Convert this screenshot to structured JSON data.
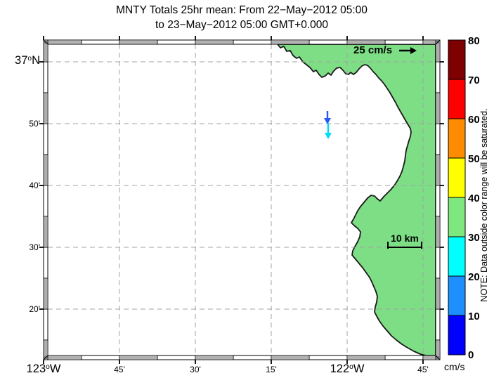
{
  "title": {
    "line1": "MNTY Totals 25hr mean: From 22−May−2012 05:00",
    "line2": "to 23−May−2012 05:00 GMT+0.000"
  },
  "map": {
    "land_color": "#7DDE85",
    "coast_color": "#1a1a1a",
    "grid_color": "#a3a3a3",
    "x_axis": {
      "ticks": [
        {
          "num": "123",
          "sup": "o",
          "dir": "W"
        },
        {
          "label": "45'"
        },
        {
          "label": "30'"
        },
        {
          "label": "15'"
        },
        {
          "num": "122",
          "sup": "o",
          "dir": "W"
        },
        {
          "label": "45'"
        }
      ]
    },
    "y_axis": {
      "ticks": [
        {
          "num": "37",
          "sup": "o",
          "dir": "N"
        },
        {
          "label": "50'"
        },
        {
          "label": "40'"
        },
        {
          "label": "30'"
        },
        {
          "label": "20'"
        }
      ]
    },
    "vector_scale": {
      "label": "25 cm/s",
      "color": "#000000"
    },
    "distance_scale": {
      "label": "10 km"
    },
    "current_vectors": [
      {
        "name": "vector-1",
        "color": "#2B59F0",
        "direction": "down"
      },
      {
        "name": "vector-2",
        "color": "#00D9FB",
        "direction": "down"
      }
    ]
  },
  "colorbar": {
    "unit": "cm/s",
    "note": "NOTE: Data outside color range will be saturated.",
    "tick_labels": [
      "80",
      "70",
      "60",
      "50",
      "40",
      "30",
      "20",
      "10",
      "0"
    ],
    "segments": [
      {
        "range": "70-80",
        "color": "#7E0000"
      },
      {
        "range": "60-70",
        "color": "#FF0000"
      },
      {
        "range": "50-60",
        "color": "#FF8C00"
      },
      {
        "range": "40-50",
        "color": "#FFFF00"
      },
      {
        "range": "30-40",
        "color": "#7DE87D"
      },
      {
        "range": "20-30",
        "color": "#00FFFF"
      },
      {
        "range": "10-20",
        "color": "#1E8FFF"
      },
      {
        "range": "0-10",
        "color": "#0000FF"
      }
    ]
  }
}
